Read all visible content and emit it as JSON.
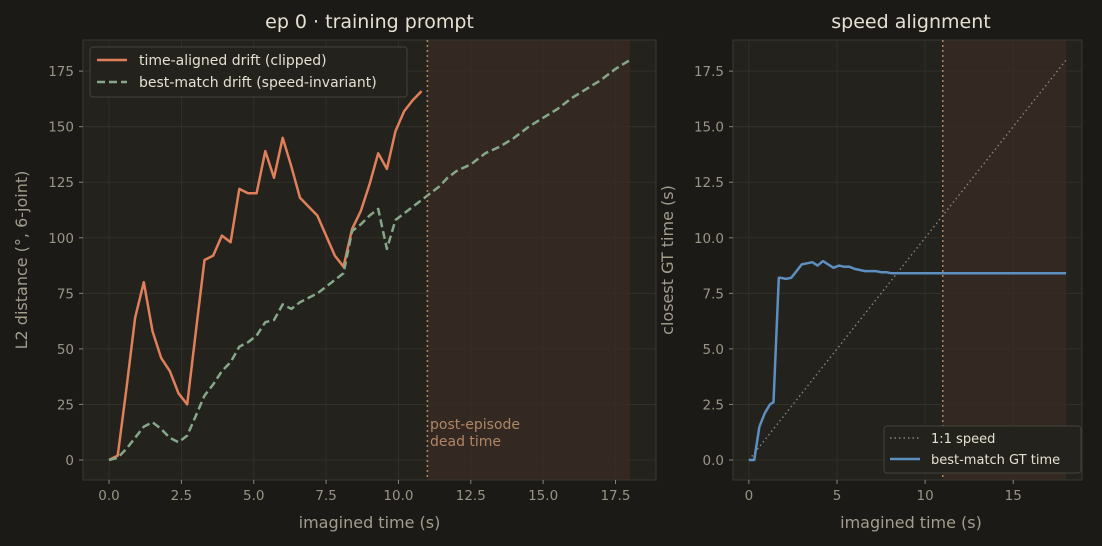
{
  "colors": {
    "background": "#1b1a16",
    "time_aligned": "#e0805a",
    "best_match_drift": "#85a88a",
    "best_match_gt": "#5d8fc0",
    "dead_time_shade": "#3a2c24",
    "episode_end_line": "#b08663",
    "identity_line": "#8a857a"
  },
  "chart_data": [
    {
      "type": "line",
      "title": "ep 0 · training prompt",
      "xlabel": "imagined time (s)",
      "ylabel": "L2 distance  (°, 6-joint)",
      "xlim": [
        -0.9,
        18.9
      ],
      "ylim": [
        -9,
        189
      ],
      "xticks": [
        "0.0",
        "2.5",
        "5.0",
        "7.5",
        "10.0",
        "12.5",
        "15.0",
        "17.5"
      ],
      "xtick_values": [
        0,
        2.5,
        5,
        7.5,
        10,
        12.5,
        15,
        17.5
      ],
      "yticks": [
        "0",
        "25",
        "50",
        "75",
        "100",
        "125",
        "150",
        "175"
      ],
      "ytick_values": [
        0,
        25,
        50,
        75,
        100,
        125,
        150,
        175
      ],
      "grid": true,
      "legend_position": "top-left",
      "episode_end_x": 11.0,
      "shaded_region": [
        11.0,
        18.0
      ],
      "annotation": [
        "post-episode",
        "dead time"
      ],
      "series": [
        {
          "name": "time-aligned drift (clipped)",
          "style": "solid",
          "x": [
            0,
            0.3,
            0.6,
            0.9,
            1.2,
            1.5,
            1.8,
            2.1,
            2.4,
            2.7,
            3.0,
            3.3,
            3.6,
            3.9,
            4.2,
            4.5,
            4.8,
            5.1,
            5.4,
            5.7,
            6.0,
            6.3,
            6.6,
            6.9,
            7.2,
            7.5,
            7.8,
            8.1,
            8.4,
            8.7,
            9.0,
            9.3,
            9.6,
            9.9,
            10.2,
            10.5,
            10.8
          ],
          "values": [
            0,
            2,
            32,
            64,
            80,
            58,
            46,
            40,
            30,
            25,
            58,
            90,
            92,
            101,
            98,
            122,
            120,
            120,
            139,
            127,
            145,
            132,
            118,
            114,
            110,
            101,
            92,
            87,
            104,
            112,
            124,
            138,
            131,
            148,
            157,
            162,
            166
          ]
        },
        {
          "name": "best-match drift (speed-invariant)",
          "style": "dashed",
          "x": [
            0,
            0.3,
            0.6,
            0.9,
            1.2,
            1.5,
            1.8,
            2.1,
            2.4,
            2.7,
            3.0,
            3.3,
            3.6,
            3.9,
            4.2,
            4.5,
            4.8,
            5.1,
            5.4,
            5.7,
            6.0,
            6.3,
            6.6,
            6.9,
            7.2,
            7.5,
            7.8,
            8.1,
            8.4,
            8.7,
            9.0,
            9.3,
            9.6,
            9.9,
            10.2,
            10.5,
            10.8,
            11.1,
            11.4,
            11.7,
            12.0,
            12.5,
            13.0,
            13.5,
            14.0,
            14.5,
            15.0,
            15.5,
            16.0,
            16.5,
            17.0,
            17.5,
            18.0
          ],
          "values": [
            0,
            1,
            5,
            10,
            15,
            17,
            14,
            10,
            8,
            11,
            20,
            29,
            34,
            40,
            44,
            51,
            53,
            56,
            62,
            63,
            70,
            68,
            71,
            73,
            75,
            78,
            81,
            84,
            103,
            106,
            110,
            113,
            95,
            108,
            111,
            114,
            117,
            120,
            123,
            127,
            130,
            133,
            138,
            141,
            145,
            150,
            154,
            158,
            163,
            167,
            171,
            176,
            180
          ]
        }
      ]
    },
    {
      "type": "line",
      "title": "speed alignment",
      "xlabel": "imagined time (s)",
      "ylabel": "closest GT time (s)",
      "xlim": [
        -0.9,
        18.9
      ],
      "ylim": [
        -0.9,
        18.9
      ],
      "xticks": [
        "0",
        "5",
        "10",
        "15"
      ],
      "xtick_values": [
        0,
        5,
        10,
        15
      ],
      "yticks": [
        "0.0",
        "2.5",
        "5.0",
        "7.5",
        "10.0",
        "12.5",
        "15.0",
        "17.5"
      ],
      "ytick_values": [
        0,
        2.5,
        5,
        7.5,
        10,
        12.5,
        15,
        17.5
      ],
      "grid": true,
      "legend_position": "bottom-right",
      "episode_end_x": 11.0,
      "shaded_region": [
        11.0,
        18.0
      ],
      "series": [
        {
          "name": "1:1 speed",
          "style": "dotted",
          "x": [
            0,
            18
          ],
          "values": [
            0,
            18
          ]
        },
        {
          "name": "best-match GT time",
          "style": "solid",
          "x": [
            0,
            0.3,
            0.6,
            0.9,
            1.2,
            1.4,
            1.7,
            1.8,
            2.1,
            2.4,
            2.7,
            3.0,
            3.3,
            3.6,
            3.9,
            4.2,
            4.5,
            4.8,
            5.1,
            5.4,
            5.7,
            6.0,
            6.3,
            6.6,
            6.9,
            7.2,
            7.5,
            7.8,
            8.1,
            9.0,
            10.0,
            11.0,
            12.0,
            13.0,
            14.0,
            15.0,
            16.0,
            17.0,
            18.0
          ],
          "values": [
            0,
            0,
            1.5,
            2.1,
            2.5,
            2.6,
            8.2,
            8.2,
            8.15,
            8.2,
            8.5,
            8.8,
            8.85,
            8.9,
            8.75,
            8.95,
            8.8,
            8.65,
            8.75,
            8.7,
            8.7,
            8.6,
            8.55,
            8.5,
            8.5,
            8.5,
            8.45,
            8.45,
            8.4,
            8.4,
            8.4,
            8.4,
            8.4,
            8.4,
            8.4,
            8.4,
            8.4,
            8.4,
            8.4
          ]
        }
      ]
    }
  ]
}
